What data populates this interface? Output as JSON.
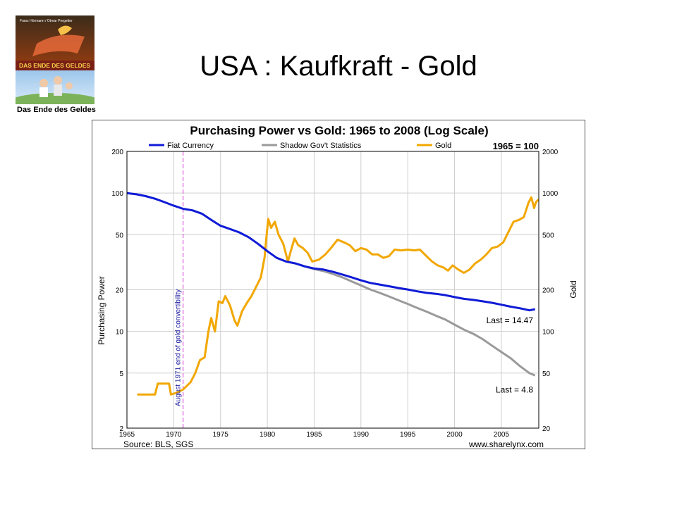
{
  "slide": {
    "title": "USA : Kaufkraft - Gold",
    "book": {
      "cover_authors": "Franz Hörmann / Otmar Pregetter",
      "cover_title": "DAS ENDE DES GELDES",
      "caption": "Das Ende des Geldes"
    }
  },
  "colors": {
    "fiat": "#0f1bd6",
    "shadow": "#9a9a9a",
    "gold": "#f2a700",
    "marker": "#d23bd2",
    "grid": "#cfcfcf"
  },
  "chart_data": {
    "type": "line",
    "title": "Purchasing Power vs Gold: 1965 to 2008 (Log Scale)",
    "index_note": "1965 = 100",
    "xlabel": "",
    "ylabel_left": "Purchasing Power",
    "ylabel_right": "Gold",
    "xlim": [
      1965,
      2009
    ],
    "ylim_left": [
      2,
      200
    ],
    "ylim_right": [
      20,
      2000
    ],
    "scale": "log",
    "grid": true,
    "legend_position": "top",
    "x_ticks": [
      "1965",
      "1970",
      "1975",
      "1980",
      "1985",
      "1990",
      "1995",
      "2000",
      "2005"
    ],
    "y_left_ticks": [
      "200",
      "100",
      "50",
      "20",
      "10",
      "5",
      "2"
    ],
    "y_right_ticks": [
      "2000",
      "1000",
      "500",
      "200",
      "100",
      "50",
      "20"
    ],
    "source": "Source: BLS, SGS",
    "credit": "www.sharelynx.com",
    "annotation": {
      "x": 1971,
      "text": "August 1971 end of gold convertibility"
    },
    "series": [
      {
        "name": "Fiat Currency",
        "axis": "left",
        "last_label": "Last = 14.47",
        "points": [
          [
            1965,
            100
          ],
          [
            1966,
            98
          ],
          [
            1967,
            95
          ],
          [
            1968,
            91
          ],
          [
            1969,
            86
          ],
          [
            1970,
            81
          ],
          [
            1971,
            77
          ],
          [
            1972,
            75
          ],
          [
            1973,
            71
          ],
          [
            1974,
            64
          ],
          [
            1975,
            58
          ],
          [
            1976,
            55
          ],
          [
            1977,
            52
          ],
          [
            1978,
            48
          ],
          [
            1979,
            43
          ],
          [
            1980,
            38
          ],
          [
            1981,
            34
          ],
          [
            1982,
            32
          ],
          [
            1983,
            31
          ],
          [
            1984,
            29.5
          ],
          [
            1985,
            28.5
          ],
          [
            1986,
            28
          ],
          [
            1987,
            27
          ],
          [
            1988,
            25.8
          ],
          [
            1989,
            24.6
          ],
          [
            1990,
            23.4
          ],
          [
            1991,
            22.4
          ],
          [
            1992,
            21.8
          ],
          [
            1993,
            21.2
          ],
          [
            1994,
            20.6
          ],
          [
            1995,
            20.1
          ],
          [
            1996,
            19.5
          ],
          [
            1997,
            19
          ],
          [
            1998,
            18.7
          ],
          [
            1999,
            18.3
          ],
          [
            2000,
            17.7
          ],
          [
            2001,
            17.2
          ],
          [
            2002,
            16.9
          ],
          [
            2003,
            16.5
          ],
          [
            2004,
            16.1
          ],
          [
            2005,
            15.6
          ],
          [
            2006,
            15.1
          ],
          [
            2007,
            14.7
          ],
          [
            2008,
            14.2
          ],
          [
            2008.6,
            14.47
          ]
        ]
      },
      {
        "name": "Shadow Gov't Statistics",
        "axis": "left",
        "last_label": "Last = 4.8",
        "points": [
          [
            1983,
            31
          ],
          [
            1984,
            29.5
          ],
          [
            1985,
            28.2
          ],
          [
            1986,
            27.3
          ],
          [
            1987,
            26
          ],
          [
            1988,
            24.6
          ],
          [
            1989,
            23
          ],
          [
            1990,
            21.5
          ],
          [
            1991,
            20.1
          ],
          [
            1992,
            19
          ],
          [
            1993,
            17.9
          ],
          [
            1994,
            16.8
          ],
          [
            1995,
            15.8
          ],
          [
            1996,
            14.8
          ],
          [
            1997,
            13.9
          ],
          [
            1998,
            13
          ],
          [
            1999,
            12.2
          ],
          [
            2000,
            11.2
          ],
          [
            2001,
            10.3
          ],
          [
            2002,
            9.6
          ],
          [
            2003,
            8.8
          ],
          [
            2004,
            7.9
          ],
          [
            2005,
            7.1
          ],
          [
            2006,
            6.4
          ],
          [
            2007,
            5.6
          ],
          [
            2008,
            5
          ],
          [
            2008.6,
            4.8
          ]
        ]
      },
      {
        "name": "Gold",
        "axis": "right",
        "last_label": "",
        "points": [
          [
            1966.1,
            35
          ],
          [
            1968,
            35
          ],
          [
            1968.3,
            42
          ],
          [
            1969.5,
            42
          ],
          [
            1969.7,
            35
          ],
          [
            1970.3,
            36
          ],
          [
            1971,
            38
          ],
          [
            1971.8,
            43
          ],
          [
            1972.3,
            50
          ],
          [
            1972.8,
            62
          ],
          [
            1973.3,
            65
          ],
          [
            1973.7,
            100
          ],
          [
            1974,
            125
          ],
          [
            1974.4,
            100
          ],
          [
            1974.8,
            165
          ],
          [
            1975.2,
            160
          ],
          [
            1975.5,
            180
          ],
          [
            1976,
            155
          ],
          [
            1976.5,
            120
          ],
          [
            1976.8,
            110
          ],
          [
            1977.3,
            140
          ],
          [
            1977.8,
            160
          ],
          [
            1978.3,
            180
          ],
          [
            1978.8,
            210
          ],
          [
            1979.3,
            245
          ],
          [
            1979.7,
            340
          ],
          [
            1979.9,
            480
          ],
          [
            1980.1,
            650
          ],
          [
            1980.4,
            560
          ],
          [
            1980.8,
            620
          ],
          [
            1981.2,
            500
          ],
          [
            1981.7,
            430
          ],
          [
            1982.2,
            320
          ],
          [
            1982.5,
            380
          ],
          [
            1982.9,
            470
          ],
          [
            1983.3,
            420
          ],
          [
            1983.8,
            400
          ],
          [
            1984.3,
            370
          ],
          [
            1984.8,
            320
          ],
          [
            1985.5,
            330
          ],
          [
            1986.2,
            360
          ],
          [
            1986.8,
            400
          ],
          [
            1987.5,
            460
          ],
          [
            1988.2,
            440
          ],
          [
            1988.8,
            420
          ],
          [
            1989.4,
            380
          ],
          [
            1990,
            400
          ],
          [
            1990.6,
            390
          ],
          [
            1991.2,
            360
          ],
          [
            1991.8,
            360
          ],
          [
            1992.4,
            340
          ],
          [
            1993,
            350
          ],
          [
            1993.6,
            390
          ],
          [
            1994.3,
            385
          ],
          [
            1995,
            390
          ],
          [
            1995.7,
            385
          ],
          [
            1996.3,
            390
          ],
          [
            1997,
            350
          ],
          [
            1997.6,
            320
          ],
          [
            1998.2,
            300
          ],
          [
            1998.8,
            290
          ],
          [
            1999.3,
            275
          ],
          [
            1999.8,
            300
          ],
          [
            2000.4,
            280
          ],
          [
            2001,
            265
          ],
          [
            2001.6,
            280
          ],
          [
            2002.2,
            310
          ],
          [
            2002.8,
            330
          ],
          [
            2003.4,
            360
          ],
          [
            2004,
            400
          ],
          [
            2004.6,
            410
          ],
          [
            2005.2,
            440
          ],
          [
            2005.8,
            530
          ],
          [
            2006.3,
            620
          ],
          [
            2006.9,
            640
          ],
          [
            2007.4,
            670
          ],
          [
            2007.9,
            850
          ],
          [
            2008.2,
            930
          ],
          [
            2008.5,
            780
          ],
          [
            2008.7,
            860
          ],
          [
            2009,
            900
          ]
        ]
      }
    ]
  }
}
